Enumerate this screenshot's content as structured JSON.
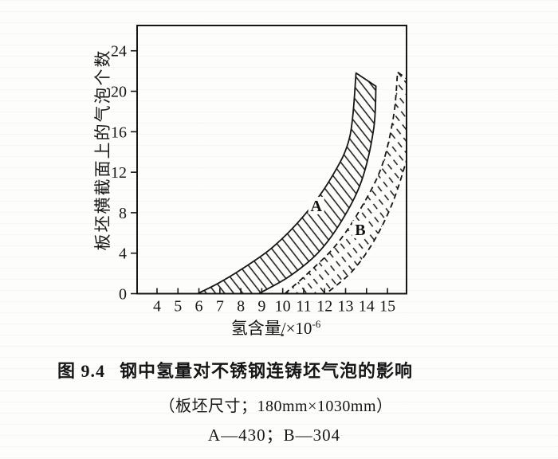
{
  "colors": {
    "ink": "#161616",
    "paper": "#fdfdfb"
  },
  "labels": {
    "ylabel": "板坯横截面上的气泡个数",
    "xlabel_base": "氢含量/×10",
    "xlabel_exp": "-6"
  },
  "caption": {
    "figure_label": "图 9.4",
    "title": "钢中氢量对不锈钢连铸坯气泡的影响",
    "size_note": "（板坯尺寸；180mm×1030mm）",
    "series_note": "A—430；B—304"
  },
  "chart_data": {
    "type": "area",
    "title": "图 9.4 钢中氢量对不锈钢连铸坯气泡的影响",
    "subtitle": "（板坯尺寸；180mm×1030mm）",
    "xlabel": "氢含量/×10⁻⁶",
    "ylabel": "板坯横截面上的气泡个数",
    "xlim": [
      3.05,
      15.91
    ],
    "ylim": [
      0,
      26.5
    ],
    "xticks": [
      4,
      5,
      6,
      7,
      8,
      9,
      10,
      11,
      12,
      13,
      14,
      15
    ],
    "yticks": [
      0,
      4,
      8,
      12,
      16,
      20,
      24
    ],
    "grid": false,
    "legend_note": "A—430；B—304",
    "series": [
      {
        "label": "A",
        "steel_grade": "430",
        "line_style": "solid",
        "hatch": "solid",
        "upper_boundary": [
          [
            5.93,
            0
          ],
          [
            6.9,
            1.0
          ],
          [
            8.01,
            2.38
          ],
          [
            9.53,
            4.6
          ],
          [
            11.05,
            7.8
          ],
          [
            12.33,
            11.5
          ],
          [
            13.2,
            15.5
          ],
          [
            13.5,
            21.8
          ]
        ],
        "lower_boundary": [
          [
            8.85,
            0
          ],
          [
            10.29,
            1.67
          ],
          [
            11.69,
            4.05
          ],
          [
            12.82,
            7.22
          ],
          [
            13.77,
            11.19
          ],
          [
            14.34,
            16.27
          ],
          [
            14.45,
            20.5
          ]
        ],
        "label_pos": [
          11.6,
          8.7
        ]
      },
      {
        "label": "B",
        "steel_grade": "304",
        "line_style": "dashed",
        "hatch": "dashed",
        "upper_boundary": [
          [
            10.1,
            0
          ],
          [
            11.31,
            2.22
          ],
          [
            12.56,
            4.84
          ],
          [
            13.7,
            8.33
          ],
          [
            14.72,
            12.54
          ],
          [
            15.29,
            17.54
          ],
          [
            15.48,
            21.9
          ]
        ],
        "lower_boundary": [
          [
            12.07,
            0
          ],
          [
            13.32,
            2.22
          ],
          [
            14.34,
            5.16
          ],
          [
            15.21,
            8.81
          ],
          [
            15.85,
            12.78
          ],
          [
            16.4,
            17.0
          ]
        ],
        "cap_point": [
          16.4,
          20.5
        ],
        "label_pos": [
          13.7,
          6.35
        ]
      }
    ]
  }
}
